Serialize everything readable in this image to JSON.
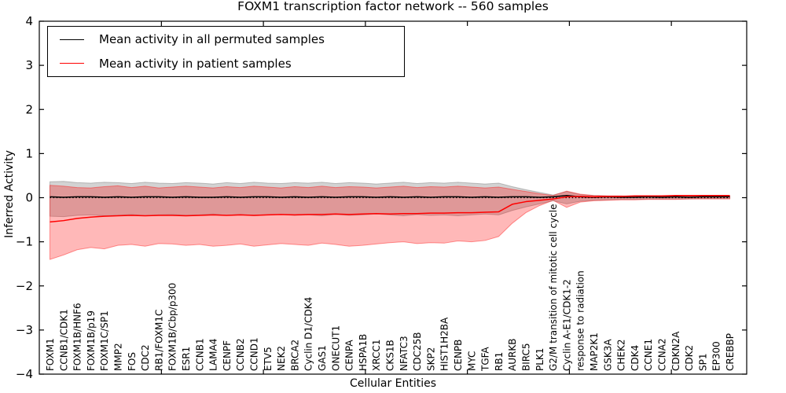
{
  "figure": {
    "title": "FOXM1 transcription factor network -- 560 samples",
    "xlabel": "Cellular Entities",
    "ylabel": "Inferred Activity"
  },
  "legend": {
    "entries": [
      {
        "label": "Mean activity in all permuted samples",
        "color": "#000000"
      },
      {
        "label": "Mean activity in patient samples",
        "color": "#ff0000"
      }
    ]
  },
  "chart_data": {
    "type": "line",
    "title": "FOXM1 transcription factor network -- 560 samples",
    "xlabel": "Cellular Entities",
    "ylabel": "Inferred Activity",
    "grid": false,
    "legend_position": "upper left",
    "ylim": [
      -4,
      4
    ],
    "yticks": [
      4,
      3,
      2,
      1,
      0,
      -1,
      -2,
      -3,
      -4
    ],
    "ytick_labels": [
      "4",
      "3",
      "2",
      "1",
      "0",
      "−1",
      "−2",
      "−3",
      "−4"
    ],
    "xlim": [
      -0.78,
      51.24
    ],
    "xticks": [
      8.2,
      15.7,
      23.2,
      30.7,
      38.2,
      45.7
    ],
    "categories": [
      "FOXM1",
      "CCNB1/CDK1",
      "FOXM1B/HNF6",
      "FOXM1B/p19",
      "FOXM1C/SP1",
      "MMP2",
      "FOS",
      "CDC2",
      "RB1/FOXM1C",
      "FOXM1B/Cbp/p300",
      "ESR1",
      "CCNB1",
      "LAMA4",
      "CENPF",
      "CCNB2",
      "CCND1",
      "ETV5",
      "NEK2",
      "BRCA2",
      "Cyclin D1/CDK4",
      "GAS1",
      "ONECUT1",
      "CENPA",
      "HSPA1B",
      "XRCC1",
      "CKS1B",
      "NFATC3",
      "CDC25B",
      "SKP2",
      "HIST1H2BA",
      "CENPB",
      "MYC",
      "TGFA",
      "RB1",
      "AURKB",
      "BIRC5",
      "PLK1",
      "G2/M transition of mitotic cell cycle",
      "Cyclin A-E1/CDK1-2",
      "response to radiation",
      "MAP2K1",
      "GSK3A",
      "CHEK2",
      "CDK4",
      "CCNE1",
      "CCNA2",
      "CDKN2A",
      "CDK2",
      "SP1",
      "EP300",
      "CREBBP"
    ],
    "series": [
      {
        "name": "Mean activity in all permuted samples",
        "color": "#000000",
        "values": [
          0.02,
          0.01,
          0.02,
          0.02,
          0.01,
          0.02,
          0.01,
          0.02,
          0.02,
          0.01,
          0.02,
          0.01,
          0.01,
          0.02,
          0.01,
          0.02,
          0.02,
          0.01,
          0.02,
          0.01,
          0.02,
          0.01,
          0.02,
          0.02,
          0.01,
          0.02,
          0.01,
          0.02,
          0.01,
          0.02,
          0.02,
          0.01,
          0.02,
          0.01,
          0.02,
          0.02,
          0.01,
          0.02,
          0.05,
          0.02,
          0.01,
          0.02,
          0.01,
          0.01,
          0.02,
          0.01,
          0.02,
          0.01,
          0.02,
          0.02,
          0.02
        ]
      },
      {
        "name": "Mean activity in patient samples",
        "color": "#ff0000",
        "values": [
          -0.55,
          -0.52,
          -0.47,
          -0.44,
          -0.42,
          -0.41,
          -0.4,
          -0.41,
          -0.4,
          -0.4,
          -0.41,
          -0.4,
          -0.39,
          -0.4,
          -0.39,
          -0.4,
          -0.39,
          -0.38,
          -0.39,
          -0.38,
          -0.38,
          -0.37,
          -0.38,
          -0.37,
          -0.36,
          -0.37,
          -0.36,
          -0.36,
          -0.35,
          -0.35,
          -0.34,
          -0.34,
          -0.33,
          -0.32,
          -0.15,
          -0.09,
          -0.06,
          -0.03,
          0.02,
          0.03,
          0.02,
          0.03,
          0.03,
          0.04,
          0.04,
          0.04,
          0.05,
          0.05,
          0.05,
          0.05,
          0.05
        ]
      }
    ],
    "bands": [
      {
        "name": "permuted-range",
        "fill": "rgba(128,128,128,0.35)",
        "edge": "rgba(120,120,120,0.45)",
        "upper": [
          0.36,
          0.37,
          0.34,
          0.33,
          0.35,
          0.34,
          0.32,
          0.35,
          0.33,
          0.32,
          0.34,
          0.33,
          0.31,
          0.34,
          0.32,
          0.35,
          0.33,
          0.32,
          0.34,
          0.33,
          0.35,
          0.32,
          0.34,
          0.33,
          0.31,
          0.33,
          0.35,
          0.32,
          0.34,
          0.33,
          0.35,
          0.33,
          0.31,
          0.33,
          0.25,
          0.18,
          0.12,
          0.06,
          0.14,
          0.07,
          0.05,
          0.04,
          0.04,
          0.03,
          0.03,
          0.03,
          0.03,
          0.03,
          0.02,
          0.02,
          0.02
        ],
        "lower": [
          -0.42,
          -0.43,
          -0.4,
          -0.39,
          -0.41,
          -0.4,
          -0.38,
          -0.41,
          -0.39,
          -0.38,
          -0.4,
          -0.39,
          -0.37,
          -0.4,
          -0.38,
          -0.41,
          -0.39,
          -0.38,
          -0.4,
          -0.39,
          -0.41,
          -0.38,
          -0.4,
          -0.39,
          -0.37,
          -0.39,
          -0.41,
          -0.38,
          -0.4,
          -0.39,
          -0.41,
          -0.39,
          -0.37,
          -0.39,
          -0.29,
          -0.21,
          -0.14,
          -0.07,
          -0.14,
          -0.08,
          -0.06,
          -0.05,
          -0.04,
          -0.04,
          -0.03,
          -0.03,
          -0.03,
          -0.03,
          -0.02,
          -0.02,
          -0.02
        ]
      },
      {
        "name": "patient-range",
        "fill": "rgba(255,0,0,0.28)",
        "edge": "rgba(255,0,0,0.40)",
        "upper": [
          0.28,
          0.26,
          0.23,
          0.22,
          0.25,
          0.27,
          0.23,
          0.26,
          0.22,
          0.24,
          0.26,
          0.24,
          0.22,
          0.25,
          0.23,
          0.26,
          0.24,
          0.22,
          0.25,
          0.23,
          0.26,
          0.23,
          0.25,
          0.24,
          0.22,
          0.24,
          0.26,
          0.23,
          0.25,
          0.24,
          0.26,
          0.24,
          0.22,
          0.24,
          0.19,
          0.14,
          0.09,
          0.05,
          0.15,
          0.08,
          0.05,
          0.04,
          0.04,
          0.03,
          0.03,
          0.03,
          0.03,
          0.03,
          0.03,
          0.03,
          0.04
        ],
        "lower": [
          -1.4,
          -1.3,
          -1.18,
          -1.13,
          -1.16,
          -1.08,
          -1.06,
          -1.1,
          -1.04,
          -1.05,
          -1.08,
          -1.06,
          -1.1,
          -1.08,
          -1.05,
          -1.1,
          -1.07,
          -1.04,
          -1.06,
          -1.08,
          -1.03,
          -1.06,
          -1.1,
          -1.08,
          -1.05,
          -1.02,
          -1.0,
          -1.04,
          -1.02,
          -1.03,
          -0.98,
          -1.0,
          -0.97,
          -0.88,
          -0.58,
          -0.34,
          -0.18,
          -0.06,
          -0.22,
          -0.1,
          -0.07,
          -0.06,
          -0.05,
          -0.05,
          -0.04,
          -0.04,
          -0.04,
          -0.03,
          -0.03,
          -0.03,
          -0.03
        ]
      }
    ],
    "zero_line": {
      "y": 0,
      "style": "dotted",
      "color": "#000000"
    }
  }
}
